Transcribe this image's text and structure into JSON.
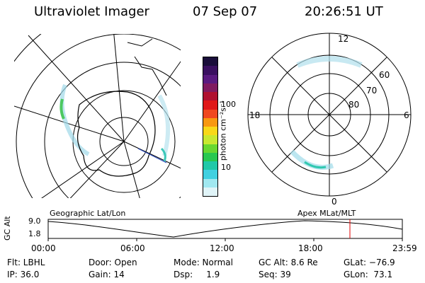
{
  "header": {
    "instrument": "Ultraviolet Imager",
    "date": "07 Sep 07",
    "time": "20:26:51 UT"
  },
  "left_panel": {
    "caption": "Geographic Lat/Lon"
  },
  "right_panel": {
    "caption": "Apex  MLat/MLT",
    "mlt_labels": {
      "top": "12",
      "left": "18",
      "right": "6",
      "bottom": "0"
    },
    "lat_labels": [
      "60",
      "70",
      "80"
    ]
  },
  "colorbar": {
    "unit_label": "photon cm⁻²s⁻¹",
    "ticks": [
      "100",
      "10"
    ],
    "colors": [
      "#1a0e3a",
      "#3a1060",
      "#5a1a80",
      "#801a60",
      "#b01030",
      "#e01818",
      "#f04820",
      "#f89810",
      "#f8d818",
      "#c8e830",
      "#68d830",
      "#28c850",
      "#20c8a8",
      "#40d0e0",
      "#a0e8f0",
      "#e0f4f8"
    ]
  },
  "timeline": {
    "ylabel": "GC Alt",
    "ytick_top": "9.0",
    "ytick_bottom": "1.8",
    "xticks": [
      "00:00",
      "06:00",
      "12:00",
      "18:00",
      "23:59"
    ],
    "marker_fraction": 0.852,
    "marker_color": "#e00000"
  },
  "footer": {
    "filter": "Flt: LBHL",
    "ip": "IP: 36.0",
    "door": "Door: Open",
    "gain": "Gain: 14",
    "mode": "Mode: Normal",
    "dsp": "Dsp:     1.9",
    "gc_alt": "GC Alt: 8.6 Re",
    "seq": "Seq: 39",
    "glat": "GLat: −76.9",
    "glon": "GLon:  73.1"
  }
}
